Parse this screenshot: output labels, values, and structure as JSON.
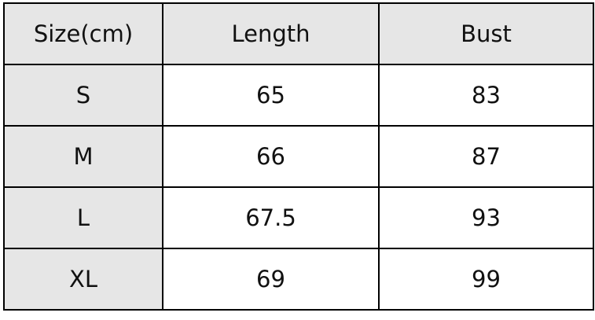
{
  "table": {
    "headers": [
      "Size(cm)",
      "Length",
      "Bust"
    ],
    "rows": [
      [
        "S",
        "65",
        "83"
      ],
      [
        "M",
        "66",
        "87"
      ],
      [
        "L",
        "67.5",
        "93"
      ],
      [
        "XL",
        "69",
        "99"
      ]
    ]
  },
  "colors": {
    "header_bg": "#e6e6e6",
    "border": "#000000",
    "cell_bg": "#ffffff"
  }
}
